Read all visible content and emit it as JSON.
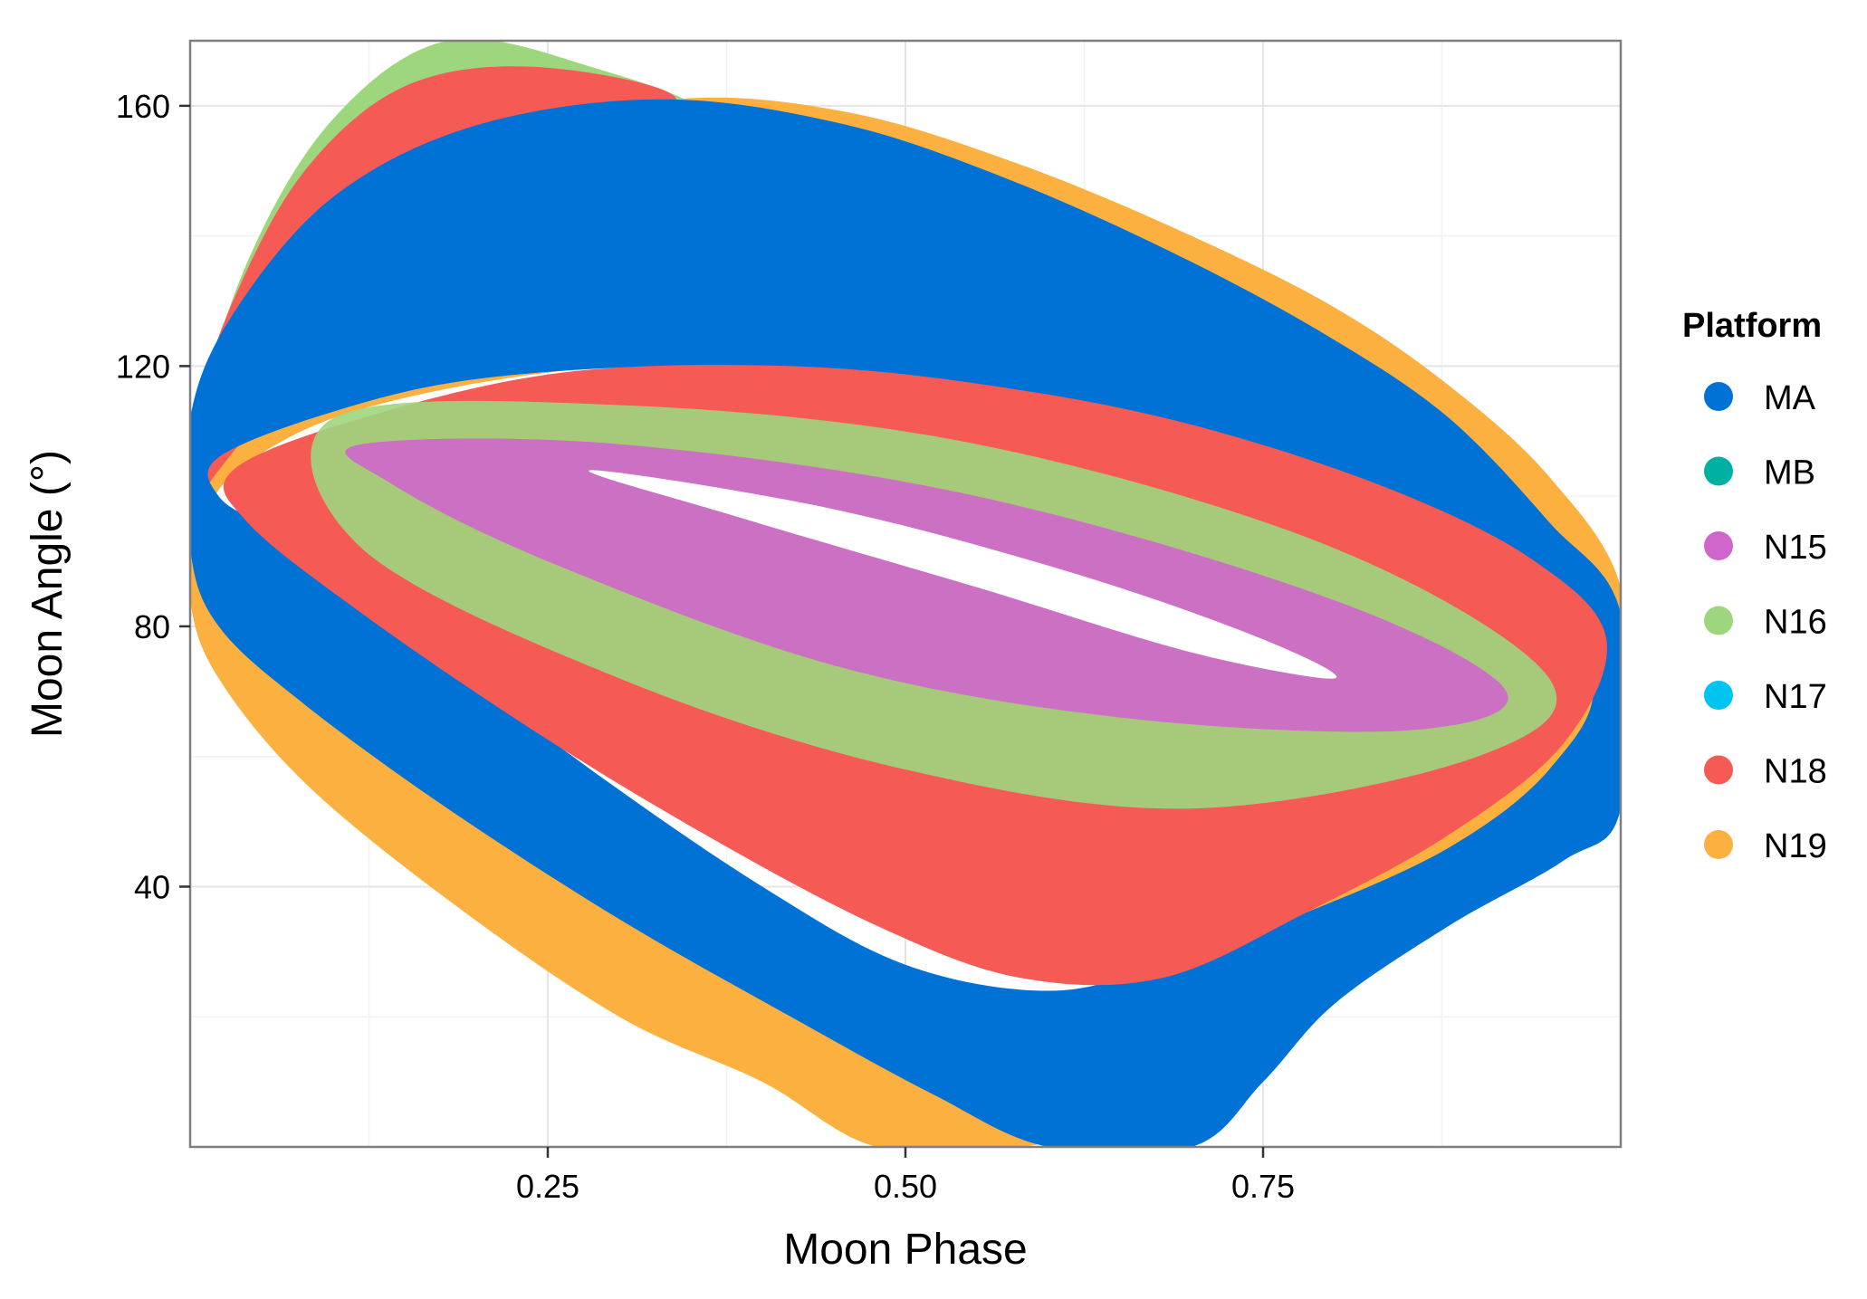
{
  "chart_data": {
    "type": "scatter",
    "title": "",
    "xlabel": "Moon Phase",
    "ylabel": "Moon Angle (°)",
    "xlim": [
      0.0,
      1.0
    ],
    "ylim": [
      0,
      170
    ],
    "grid": true,
    "x_ticks": [
      0.25,
      0.5,
      0.75
    ],
    "x_tick_labels": [
      "0.25",
      "0.50",
      "0.75"
    ],
    "y_ticks": [
      40,
      80,
      120,
      160
    ],
    "y_tick_labels": [
      "40",
      "80",
      "120",
      "160"
    ],
    "legend": {
      "title": "Platform",
      "placement": "right",
      "entries": [
        {
          "name": "MA",
          "color": "#0072d6"
        },
        {
          "name": "MB",
          "color": "#00b0a0"
        },
        {
          "name": "N15",
          "color": "#d066cc"
        },
        {
          "name": "N16",
          "color": "#9ed67e"
        },
        {
          "name": "N17",
          "color": "#00c4f0"
        },
        {
          "name": "N18",
          "color": "#f65a55"
        },
        {
          "name": "N19",
          "color": "#fbb03f"
        }
      ]
    },
    "series": [
      {
        "name": "N19",
        "shape": "tilted-elliptical-band",
        "outer": [
          [
            0.0,
            100
          ],
          [
            0.04,
            118
          ],
          [
            0.12,
            140
          ],
          [
            0.22,
            154
          ],
          [
            0.34,
            161
          ],
          [
            0.46,
            159
          ],
          [
            0.58,
            151
          ],
          [
            0.7,
            140
          ],
          [
            0.8,
            129
          ],
          [
            0.88,
            117
          ],
          [
            0.95,
            103
          ],
          [
            1.0,
            86
          ],
          [
            1.0,
            62
          ],
          [
            0.97,
            53
          ],
          [
            0.9,
            42
          ],
          [
            0.8,
            31
          ],
          [
            0.72,
            20
          ],
          [
            0.66,
            5
          ],
          [
            0.58,
            0
          ],
          [
            0.48,
            0
          ],
          [
            0.4,
            10
          ],
          [
            0.3,
            20
          ],
          [
            0.18,
            38
          ],
          [
            0.08,
            56
          ],
          [
            0.02,
            72
          ],
          [
            0.0,
            84
          ]
        ],
        "inner": [
          [
            0.02,
            101
          ],
          [
            0.1,
            112
          ],
          [
            0.25,
            119
          ],
          [
            0.4,
            120
          ],
          [
            0.55,
            117
          ],
          [
            0.7,
            111
          ],
          [
            0.85,
            100
          ],
          [
            0.95,
            88
          ],
          [
            0.97,
            78
          ],
          [
            0.9,
            60
          ],
          [
            0.8,
            44
          ],
          [
            0.7,
            30
          ],
          [
            0.6,
            22
          ],
          [
            0.48,
            25
          ],
          [
            0.35,
            42
          ],
          [
            0.22,
            64
          ],
          [
            0.1,
            83
          ],
          [
            0.04,
            94
          ]
        ]
      },
      {
        "name": "N16",
        "shape": "tilted-elliptical-band",
        "outer": [
          [
            0.0,
            108
          ],
          [
            0.04,
            136
          ],
          [
            0.1,
            158
          ],
          [
            0.18,
            170
          ],
          [
            0.28,
            166
          ],
          [
            0.36,
            158
          ],
          [
            0.26,
            150
          ],
          [
            0.14,
            134
          ],
          [
            0.06,
            118
          ],
          [
            0.02,
            108
          ]
        ],
        "inner": []
      },
      {
        "name": "N18",
        "shape": "tilted-elliptical-band",
        "outer": [
          [
            0.0,
            110
          ],
          [
            0.03,
            130
          ],
          [
            0.08,
            150
          ],
          [
            0.15,
            163
          ],
          [
            0.24,
            166
          ],
          [
            0.34,
            161
          ],
          [
            0.26,
            152
          ],
          [
            0.16,
            138
          ],
          [
            0.08,
            120
          ],
          [
            0.02,
            104
          ],
          [
            0.0,
            98
          ]
        ],
        "inner": []
      },
      {
        "name": "MA",
        "shape": "tilted-elliptical-band",
        "outer": [
          [
            0.0,
            112
          ],
          [
            0.03,
            128
          ],
          [
            0.1,
            146
          ],
          [
            0.2,
            157
          ],
          [
            0.33,
            161
          ],
          [
            0.46,
            157
          ],
          [
            0.58,
            148
          ],
          [
            0.7,
            136
          ],
          [
            0.8,
            124
          ],
          [
            0.88,
            112
          ],
          [
            0.95,
            96
          ],
          [
            1.0,
            82
          ],
          [
            1.0,
            52
          ],
          [
            0.96,
            44
          ],
          [
            0.88,
            34
          ],
          [
            0.8,
            22
          ],
          [
            0.75,
            10
          ],
          [
            0.7,
            0
          ],
          [
            0.6,
            0
          ],
          [
            0.52,
            8
          ],
          [
            0.42,
            20
          ],
          [
            0.3,
            35
          ],
          [
            0.18,
            52
          ],
          [
            0.08,
            68
          ],
          [
            0.02,
            80
          ],
          [
            0.0,
            92
          ]
        ],
        "inner": [
          [
            0.02,
            106
          ],
          [
            0.1,
            113
          ],
          [
            0.2,
            118
          ],
          [
            0.35,
            120
          ],
          [
            0.5,
            118
          ],
          [
            0.65,
            113
          ],
          [
            0.8,
            104
          ],
          [
            0.92,
            90
          ],
          [
            0.98,
            72
          ],
          [
            0.95,
            58
          ],
          [
            0.88,
            46
          ],
          [
            0.78,
            36
          ],
          [
            0.68,
            28
          ],
          [
            0.6,
            24
          ],
          [
            0.5,
            28
          ],
          [
            0.4,
            40
          ],
          [
            0.28,
            58
          ],
          [
            0.16,
            78
          ],
          [
            0.06,
            94
          ],
          [
            0.02,
            100
          ]
        ]
      },
      {
        "name": "N18",
        "shape": "tilted-elliptical-band",
        "outer": [
          [
            0.03,
            104
          ],
          [
            0.12,
            112
          ],
          [
            0.26,
            119
          ],
          [
            0.42,
            120
          ],
          [
            0.56,
            117
          ],
          [
            0.7,
            111
          ],
          [
            0.84,
            101
          ],
          [
            0.94,
            90
          ],
          [
            0.99,
            78
          ],
          [
            0.96,
            62
          ],
          [
            0.88,
            48
          ],
          [
            0.78,
            36
          ],
          [
            0.68,
            26
          ],
          [
            0.58,
            26
          ],
          [
            0.48,
            34
          ],
          [
            0.36,
            48
          ],
          [
            0.24,
            64
          ],
          [
            0.12,
            82
          ],
          [
            0.04,
            96
          ]
        ],
        "inner": []
      },
      {
        "name": "N16",
        "shape": "stripes",
        "outer": [
          [
            0.1,
            112
          ],
          [
            0.3,
            114
          ],
          [
            0.55,
            108
          ],
          [
            0.8,
            92
          ],
          [
            0.95,
            72
          ],
          [
            0.9,
            60
          ],
          [
            0.7,
            52
          ],
          [
            0.5,
            58
          ],
          [
            0.3,
            72
          ],
          [
            0.12,
            92
          ]
        ],
        "inner": []
      },
      {
        "name": "N15",
        "shape": "stripes",
        "outer": [
          [
            0.12,
            108
          ],
          [
            0.3,
            108
          ],
          [
            0.55,
            100
          ],
          [
            0.8,
            84
          ],
          [
            0.92,
            70
          ],
          [
            0.85,
            64
          ],
          [
            0.65,
            66
          ],
          [
            0.45,
            74
          ],
          [
            0.25,
            90
          ],
          [
            0.14,
            102
          ]
        ],
        "inner": []
      }
    ]
  }
}
